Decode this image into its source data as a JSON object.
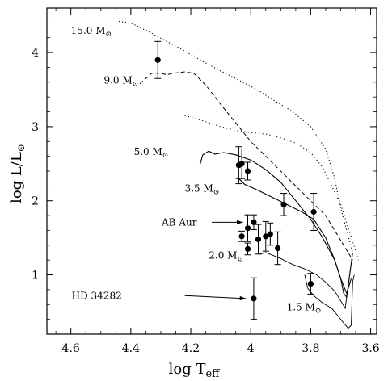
{
  "chart_data": {
    "type": "scatter",
    "xlabel": "log T",
    "xlabel_sub": "eff",
    "ylabel": "log L/L",
    "ylabel_sub": "⊙",
    "xlim": [
      4.68,
      3.58
    ],
    "ylim": [
      0.2,
      4.6
    ],
    "x_reversed": true,
    "xticks": [
      4.6,
      4.4,
      4.2,
      4.0,
      3.8,
      3.6
    ],
    "xtick_labels": [
      "4.6",
      "4.4",
      "4.2",
      "4",
      "3.8",
      "3.6"
    ],
    "yticks": [
      1,
      2,
      3,
      4
    ],
    "ytick_labels": [
      "1",
      "2",
      "3",
      "4"
    ],
    "grid": false,
    "series": [
      {
        "points": [
          {
            "x": 4.31,
            "y": 3.9,
            "yerr": 0.25
          },
          {
            "x": 4.04,
            "y": 2.48,
            "yerr": 0.25
          },
          {
            "x": 4.03,
            "y": 2.5,
            "yerr": 0.2
          },
          {
            "x": 4.01,
            "y": 2.4,
            "yerr": 0.12
          },
          {
            "x": 3.89,
            "y": 1.95,
            "yerr": 0.15
          },
          {
            "x": 3.79,
            "y": 1.85,
            "yerr": 0.25
          },
          {
            "x": 4.03,
            "y": 1.52,
            "yerr": 0.07
          },
          {
            "x": 4.01,
            "y": 1.63,
            "yerr": 0.18
          },
          {
            "x": 3.99,
            "y": 1.71,
            "yerr": 0.1
          },
          {
            "x": 3.975,
            "y": 1.48,
            "yerr": 0.2
          },
          {
            "x": 3.95,
            "y": 1.52,
            "yerr": 0.2
          },
          {
            "x": 3.935,
            "y": 1.55,
            "yerr": 0.15
          },
          {
            "x": 3.91,
            "y": 1.36,
            "yerr": 0.22
          },
          {
            "x": 4.01,
            "y": 1.35,
            "yerr": 0.08
          },
          {
            "x": 3.99,
            "y": 0.68,
            "yerr": 0.28
          },
          {
            "x": 3.8,
            "y": 0.88,
            "yerr": 0.14
          }
        ]
      }
    ],
    "tracks": [
      {
        "mass_label": "15.0 M",
        "style": "dotted",
        "label_pos": [
          4.6,
          4.25
        ],
        "points": [
          [
            4.44,
            4.42
          ],
          [
            4.4,
            4.4
          ],
          [
            4.34,
            4.28
          ],
          [
            4.28,
            4.15
          ],
          [
            4.22,
            4.02
          ],
          [
            4.16,
            3.88
          ],
          [
            4.1,
            3.75
          ],
          [
            4.04,
            3.63
          ],
          [
            3.98,
            3.5
          ],
          [
            3.92,
            3.35
          ],
          [
            3.86,
            3.2
          ],
          [
            3.8,
            3.0
          ],
          [
            3.75,
            2.7
          ],
          [
            3.72,
            2.3
          ],
          [
            3.7,
            1.9
          ],
          [
            3.68,
            1.6
          ],
          [
            3.66,
            1.3
          ]
        ]
      },
      {
        "mass_label": "9.0 M",
        "style": "dashed",
        "label_pos": [
          4.49,
          3.58
        ],
        "points": [
          [
            4.37,
            3.58
          ],
          [
            4.35,
            3.65
          ],
          [
            4.33,
            3.72
          ],
          [
            4.3,
            3.72
          ],
          [
            4.28,
            3.7
          ],
          [
            4.26,
            3.72
          ],
          [
            4.22,
            3.74
          ],
          [
            4.19,
            3.72
          ],
          [
            4.15,
            3.56
          ],
          [
            4.1,
            3.3
          ],
          [
            4.05,
            3.05
          ],
          [
            4.0,
            2.8
          ],
          [
            3.95,
            2.6
          ],
          [
            3.9,
            2.4
          ],
          [
            3.85,
            2.2
          ],
          [
            3.8,
            2.0
          ],
          [
            3.75,
            1.8
          ],
          [
            3.72,
            1.6
          ],
          [
            3.69,
            1.4
          ],
          [
            3.66,
            1.2
          ]
        ]
      },
      {
        "mass_label": "",
        "style": "dotted-sparse",
        "label_pos": null,
        "points": [
          [
            4.22,
            3.15
          ],
          [
            4.16,
            3.08
          ],
          [
            4.1,
            3.0
          ],
          [
            4.05,
            2.95
          ],
          [
            4.0,
            2.92
          ],
          [
            3.95,
            2.9
          ],
          [
            3.9,
            2.85
          ],
          [
            3.85,
            2.78
          ],
          [
            3.8,
            2.65
          ],
          [
            3.76,
            2.45
          ],
          [
            3.73,
            2.2
          ],
          [
            3.7,
            1.95
          ],
          [
            3.68,
            1.7
          ],
          [
            3.66,
            1.45
          ],
          [
            3.64,
            1.2
          ]
        ]
      },
      {
        "mass_label": "5.0 M",
        "style": "solid",
        "label_pos": [
          4.39,
          2.62
        ],
        "points": [
          [
            4.17,
            2.48
          ],
          [
            4.16,
            2.62
          ],
          [
            4.14,
            2.67
          ],
          [
            4.12,
            2.63
          ],
          [
            4.09,
            2.65
          ],
          [
            4.05,
            2.62
          ],
          [
            4.0,
            2.55
          ],
          [
            3.95,
            2.42
          ],
          [
            3.9,
            2.25
          ],
          [
            3.85,
            2.0
          ],
          [
            3.8,
            1.75
          ],
          [
            3.76,
            1.5
          ],
          [
            3.72,
            1.2
          ],
          [
            3.7,
            0.95
          ],
          [
            3.69,
            0.75
          ],
          [
            3.68,
            0.7
          ],
          [
            3.67,
            1.0
          ],
          [
            3.66,
            1.3
          ]
        ]
      },
      {
        "mass_label": "3.5 M",
        "style": "solid",
        "label_pos": [
          4.22,
          2.12
        ],
        "points": [
          [
            4.05,
            2.3
          ],
          [
            4.04,
            2.3
          ],
          [
            4.02,
            2.22
          ],
          [
            3.98,
            2.15
          ],
          [
            3.93,
            2.05
          ],
          [
            3.88,
            1.95
          ],
          [
            3.83,
            1.85
          ],
          [
            3.79,
            1.75
          ],
          [
            3.75,
            1.5
          ],
          [
            3.72,
            1.2
          ],
          [
            3.7,
            0.95
          ],
          [
            3.68,
            0.75
          ],
          [
            3.665,
            0.95
          ]
        ]
      },
      {
        "mass_label": "2.0 M",
        "style": "solid-thin",
        "label_pos": [
          4.14,
          1.22
        ],
        "points": [
          [
            3.97,
            1.28
          ],
          [
            3.95,
            1.3
          ],
          [
            3.93,
            1.27
          ],
          [
            3.9,
            1.22
          ],
          [
            3.86,
            1.14
          ],
          [
            3.82,
            1.08
          ],
          [
            3.78,
            1.0
          ],
          [
            3.75,
            0.9
          ],
          [
            3.72,
            0.78
          ],
          [
            3.7,
            0.65
          ],
          [
            3.685,
            0.55
          ],
          [
            3.68,
            0.7
          ]
        ]
      },
      {
        "mass_label": "1.5 M",
        "style": "solid-thin",
        "label_pos": [
          3.88,
          0.52
        ],
        "points": [
          [
            3.82,
            1.0
          ],
          [
            3.81,
            0.82
          ],
          [
            3.79,
            0.72
          ],
          [
            3.76,
            0.62
          ],
          [
            3.73,
            0.55
          ],
          [
            3.71,
            0.45
          ],
          [
            3.69,
            0.35
          ],
          [
            3.675,
            0.28
          ],
          [
            3.665,
            0.32
          ],
          [
            3.66,
            0.9
          ],
          [
            3.655,
            1.0
          ]
        ]
      }
    ],
    "annotations": [
      {
        "text": "AB Aur",
        "label_pos": [
          4.18,
          1.71
        ],
        "arrow_from": [
          4.13,
          1.71
        ],
        "arrow_to": [
          4.01,
          1.71
        ]
      },
      {
        "text": "HD 34282",
        "label_pos": [
          4.43,
          0.72
        ],
        "arrow_from": [
          4.22,
          0.72
        ],
        "arrow_to": [
          4.0,
          0.68
        ]
      }
    ],
    "sun_symbol": "⊙"
  }
}
